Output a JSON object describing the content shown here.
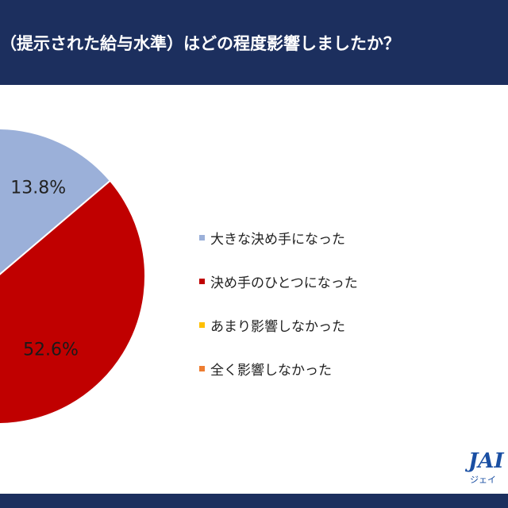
{
  "header": {
    "title": "（提示された給与水準）はどの程度影響しましたか？"
  },
  "logo": {
    "mark": "JAI",
    "sub": "ジェイ"
  },
  "chart_data": {
    "type": "pie",
    "slices": [
      {
        "label": "大きな決め手になった",
        "value": 13.8,
        "value_label": "13.8%",
        "color": "#9bb0d9"
      },
      {
        "label": "決め手のひとつになった",
        "value": 52.6,
        "value_label": "52.6%",
        "color": "#c00000"
      },
      {
        "label": "あまり影響しなかった",
        "value": null,
        "value_label": null,
        "color": "#ffc000"
      },
      {
        "label": "全く影響しなかった",
        "value": null,
        "value_label": null,
        "color": "#ed7d31"
      }
    ],
    "start_angle_deg": 0,
    "direction": "clockwise",
    "legend_position": "right"
  }
}
